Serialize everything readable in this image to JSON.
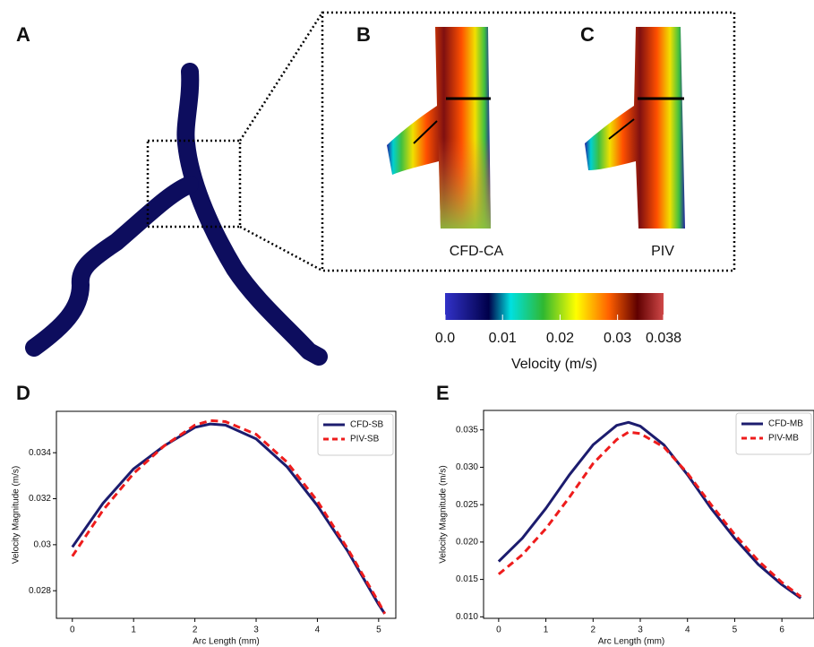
{
  "panels": {
    "a": "A",
    "b": "B",
    "c": "C",
    "d": "D",
    "e": "E"
  },
  "velocity_maps": {
    "cfd_label": "CFD-CA",
    "piv_label": "PIV"
  },
  "colorbar": {
    "label": "Velocity (m/s)",
    "lim": [
      0,
      0.038
    ],
    "ticks": [
      {
        "value": 0,
        "label": "0.0"
      },
      0.01,
      0.02,
      0.03,
      0.038
    ]
  },
  "chart_data": [
    {
      "type": "line",
      "xlabel": "Arc Length (mm)",
      "ylabel": "Velocity Magnitude (m/s)",
      "x": [
        0,
        0.5,
        1,
        1.5,
        2,
        2.25,
        2.5,
        3,
        3.5,
        4,
        4.5,
        5,
        5.1
      ],
      "series": [
        {
          "name": "CFD-SB",
          "color": "#1c1c6e",
          "dash": "solid",
          "values": [
            0.0299,
            0.0318,
            0.0333,
            0.0343,
            0.0351,
            0.03525,
            0.0352,
            0.0346,
            0.0334,
            0.0317,
            0.0297,
            0.0274,
            0.027
          ]
        },
        {
          "name": "PIV-SB",
          "color": "#ee1c1c",
          "dash": "dashed",
          "values": [
            0.0295,
            0.0315,
            0.0331,
            0.0343,
            0.0352,
            0.0354,
            0.03535,
            0.0348,
            0.0336,
            0.0319,
            0.0298,
            0.0275,
            0.027
          ]
        }
      ],
      "xlim": [
        -0.26,
        5.28
      ],
      "ylim": [
        0.0268,
        0.0358
      ],
      "xticks": [
        0,
        1,
        2,
        3,
        4,
        5
      ],
      "yticks": [
        0.028,
        0.03,
        0.032,
        0.034
      ],
      "legend": "upper right"
    },
    {
      "type": "line",
      "xlabel": "Arc Length (mm)",
      "ylabel": "Velocity Magnitude (m/s)",
      "x": [
        0,
        0.5,
        1,
        1.5,
        2,
        2.5,
        2.75,
        3,
        3.5,
        4,
        4.5,
        5,
        5.5,
        6,
        6.4
      ],
      "series": [
        {
          "name": "CFD-MB",
          "color": "#1c1c6e",
          "dash": "solid",
          "values": [
            0.0174,
            0.0205,
            0.0245,
            0.029,
            0.033,
            0.0356,
            0.036,
            0.0355,
            0.033,
            0.029,
            0.0245,
            0.0205,
            0.017,
            0.0143,
            0.0125
          ]
        },
        {
          "name": "PIV-MB",
          "color": "#ee1c1c",
          "dash": "dashed",
          "values": [
            0.0157,
            0.0183,
            0.0218,
            0.026,
            0.0305,
            0.0337,
            0.0347,
            0.0345,
            0.0327,
            0.0292,
            0.025,
            0.021,
            0.0175,
            0.0146,
            0.0127
          ]
        }
      ],
      "xlim": [
        -0.32,
        6.68
      ],
      "ylim": [
        0.0098,
        0.0376
      ],
      "xticks": [
        0,
        1,
        2,
        3,
        4,
        5,
        6
      ],
      "yticks": [
        {
          "value": 0.01,
          "label": "0.010"
        },
        0.015,
        {
          "value": 0.02,
          "label": "0.020"
        },
        0.025,
        {
          "value": 0.03,
          "label": "0.030"
        },
        0.035
      ],
      "legend": "upper right"
    }
  ]
}
